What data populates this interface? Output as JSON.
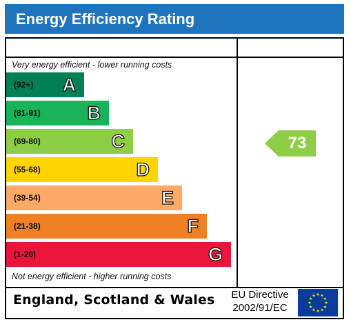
{
  "title": "Energy Efficiency Rating",
  "top_caption": "Very energy efficient - lower running costs",
  "bottom_caption": "Not energy efficient - higher running costs",
  "country": "England, Scotland & Wales",
  "directive_line1": "EU Directive",
  "directive_line2": "2002/91/EC",
  "chart_data": {
    "type": "bar",
    "categories": [
      "A",
      "B",
      "C",
      "D",
      "E",
      "F",
      "G"
    ],
    "ranges": [
      "(92+)",
      "(81-91)",
      "(69-80)",
      "(55-68)",
      "(39-54)",
      "(21-38)",
      "(1-20)"
    ],
    "colors": [
      "#008054",
      "#19b459",
      "#8dce46",
      "#ffd500",
      "#fcaa65",
      "#ef8023",
      "#e9153b"
    ],
    "current_rating": {
      "value": 73,
      "band": "C",
      "color": "#8dce46"
    }
  }
}
